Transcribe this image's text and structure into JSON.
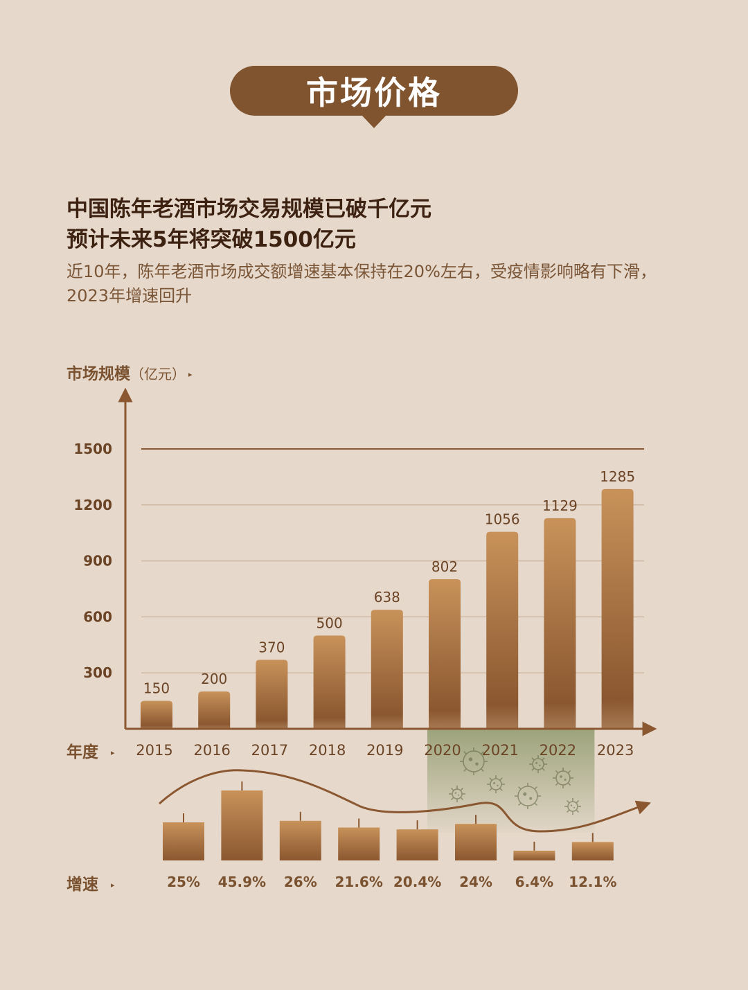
{
  "badge": {
    "title": "市场价格"
  },
  "headline": {
    "line1": "中国陈年老酒市场交易规模已破千亿元",
    "line2": "预计未来5年将突破1500亿元"
  },
  "subtitle": "近10年，陈年老酒市场成交额增速基本保持在20%左右，受疫情影响略有下滑，2023年增速回升",
  "labels": {
    "y_axis": "市场规模",
    "y_unit": "（亿元）",
    "year_row": "年度",
    "growth_row": "增速"
  },
  "colors": {
    "background": "#e6d9cc",
    "bar_top": "#c8925a",
    "bar_bottom": "#8a5730",
    "covid_highlight": "#8f9a6c"
  },
  "chart_data": {
    "type": "bar",
    "categories": [
      "2015",
      "2016",
      "2017",
      "2018",
      "2019",
      "2020",
      "2021",
      "2022",
      "2023"
    ],
    "values": [
      150,
      200,
      370,
      500,
      638,
      802,
      1056,
      1129,
      1285
    ],
    "ylabel": "市场规模（亿元）",
    "xlabel": "年度",
    "yticks": [
      300,
      600,
      900,
      1200,
      1500
    ],
    "ylim": [
      0,
      1500
    ],
    "growth": {
      "label": "增速",
      "values": [
        "25%",
        "45.9%",
        "26%",
        "21.6%",
        "20.4%",
        "24%",
        "6.4%",
        "12.1%"
      ],
      "numeric": [
        25,
        45.9,
        26,
        21.6,
        20.4,
        24,
        6.4,
        12.1
      ]
    },
    "highlight": {
      "categories": [
        "2020",
        "2021",
        "2022"
      ],
      "icon": "virus-icon"
    }
  }
}
